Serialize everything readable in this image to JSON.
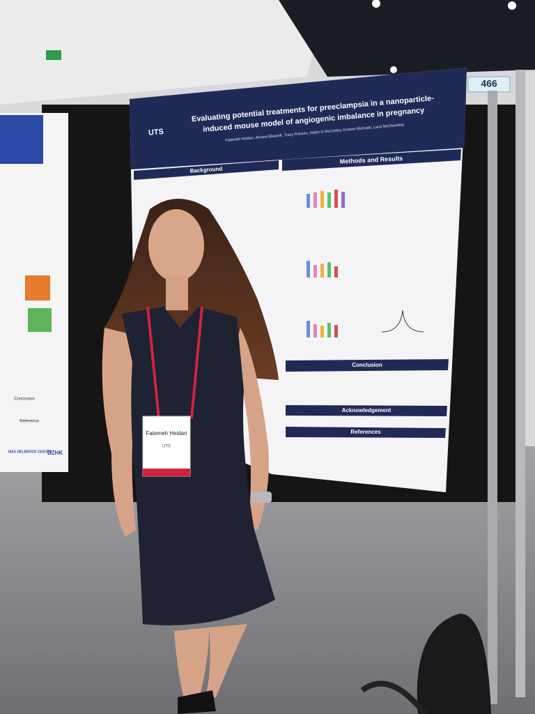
{
  "booth_number": "466",
  "poster": {
    "logo": "UTS",
    "title": [
      "Evaluating potential treatments for preeclampsia in a nanoparticle-",
      "induced mouse model of angiogenic imbalance in pregnancy"
    ],
    "authors": "Fatemeh Heidari, Ahmed Elkashif, Tracy Robson, Helen O McCarthy, Kristine McGrath, Lana McClements",
    "sections": [
      "Background",
      "Methods and Results",
      "Conclusion",
      "Acknowledgement",
      "References"
    ]
  },
  "badge": {
    "name": "Fatemeh Heidari",
    "organization": "UTS"
  },
  "side_poster": {
    "sections": [
      "Conclusion",
      "Reference"
    ],
    "logos": [
      "MAX DELBRÜCK CENTER",
      "DZHK"
    ]
  }
}
